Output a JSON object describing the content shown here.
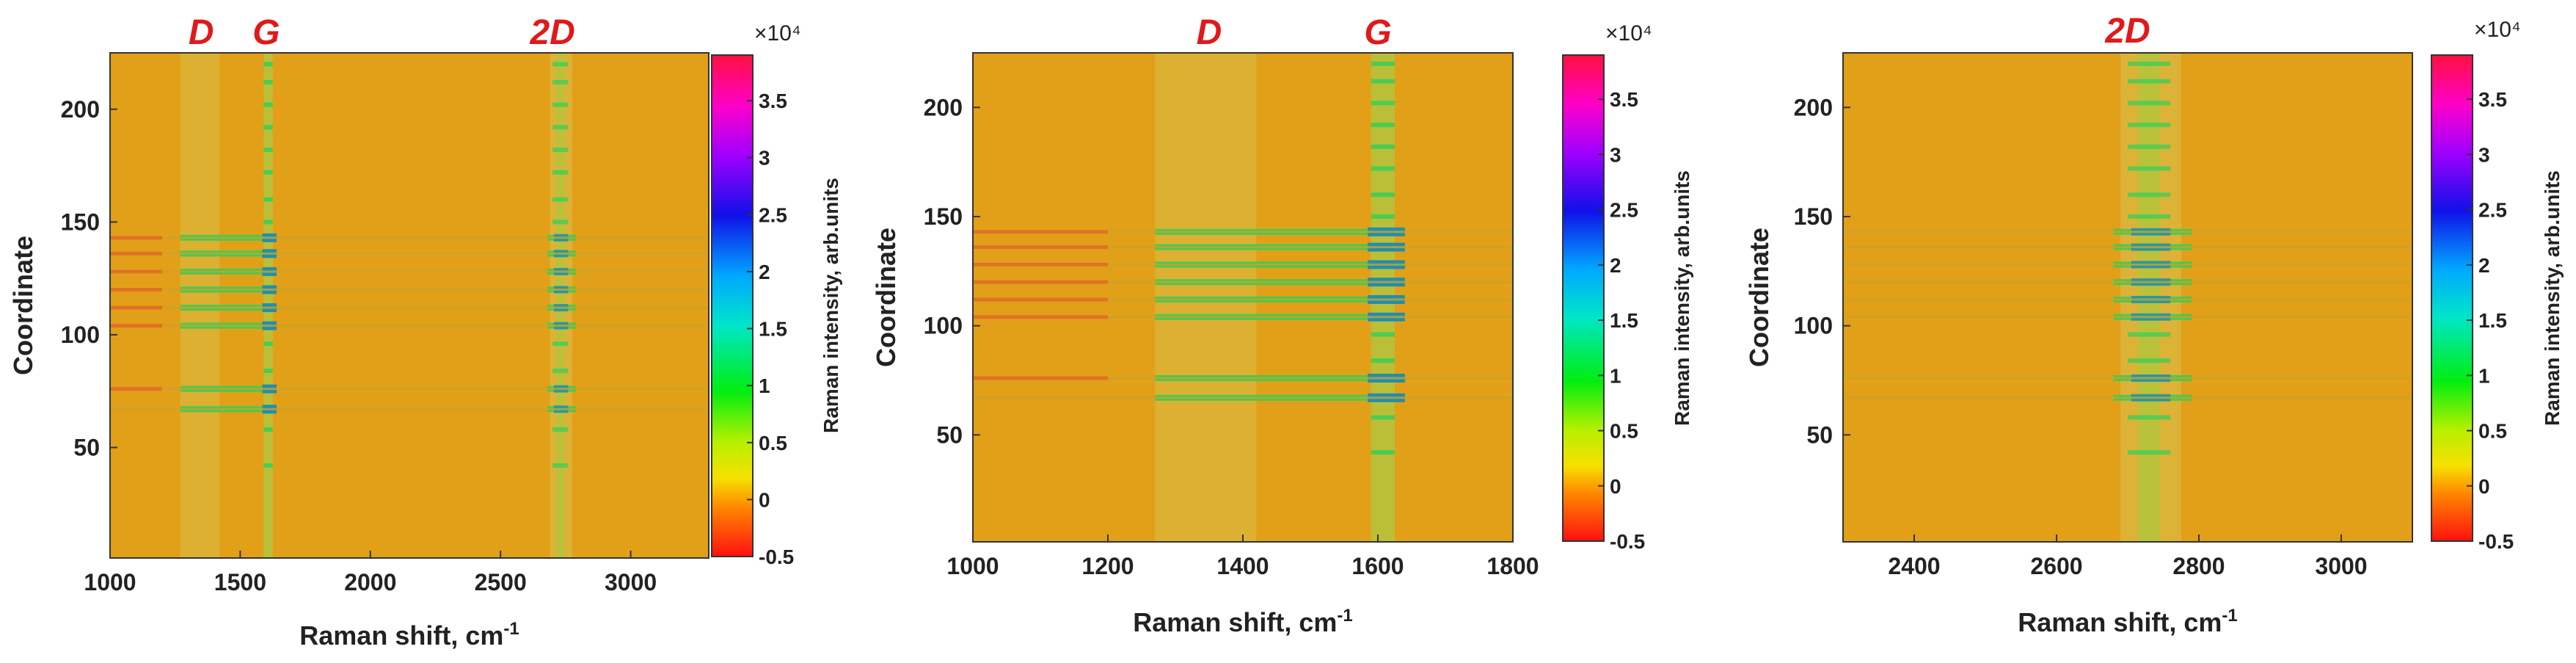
{
  "chart_data": [
    {
      "type": "heatmap",
      "id": "full",
      "xlabel": "Raman shift, cm",
      "xlabel_sup": "-1",
      "ylabel": "Coordinate",
      "xlim": [
        1000,
        3300
      ],
      "ylim": [
        1,
        225
      ],
      "xticks": [
        1000,
        1500,
        2000,
        2500,
        3000
      ],
      "yticks": [
        50,
        100,
        150,
        200
      ],
      "peak_labels": [
        {
          "text": "D",
          "x": 1350
        },
        {
          "text": "G",
          "x": 1600
        },
        {
          "text": "2D",
          "x": 2700
        }
      ],
      "colorbar": {
        "label": "Raman intensity, arb.units",
        "exponent": "×10⁴",
        "ticks": [
          "-0.5",
          "0",
          "0.5",
          "1",
          "1.5",
          "2",
          "2.5",
          "3",
          "3.5"
        ],
        "tick_values": [
          -0.5,
          0,
          0.5,
          1,
          1.5,
          2,
          2.5,
          3,
          3.5
        ],
        "range": [
          -0.5,
          3.9
        ]
      }
    },
    {
      "type": "heatmap",
      "id": "zoom-d-g",
      "xlabel": "Raman shift, cm",
      "xlabel_sup": "-1",
      "ylabel": "Coordinate",
      "xlim": [
        1000,
        1800
      ],
      "ylim": [
        1,
        225
      ],
      "xticks": [
        1000,
        1200,
        1400,
        1600,
        1800
      ],
      "yticks": [
        50,
        100,
        150,
        200
      ],
      "peak_labels": [
        {
          "text": "D",
          "x": 1350
        },
        {
          "text": "G",
          "x": 1600
        }
      ],
      "colorbar": {
        "label": "Raman intensity, arb.units",
        "exponent": "×10⁴",
        "ticks": [
          "-0.5",
          "0",
          "0.5",
          "1",
          "1.5",
          "2",
          "2.5",
          "3",
          "3.5"
        ],
        "tick_values": [
          -0.5,
          0,
          0.5,
          1,
          1.5,
          2,
          2.5,
          3,
          3.5
        ],
        "range": [
          -0.5,
          3.9
        ]
      }
    },
    {
      "type": "heatmap",
      "id": "zoom-2d",
      "xlabel": "Raman shift, cm",
      "xlabel_sup": "-1",
      "ylabel": "Coordinate",
      "xlim": [
        2300,
        3100
      ],
      "ylim": [
        1,
        225
      ],
      "xticks": [
        2400,
        2600,
        2800,
        3000
      ],
      "yticks": [
        50,
        100,
        150,
        200
      ],
      "peak_labels": [
        {
          "text": "2D",
          "x": 2700
        }
      ],
      "colorbar": {
        "label": "Raman intensity, arb.units",
        "exponent": "×10⁴",
        "ticks": [
          "-0.5",
          "0",
          "0.5",
          "1",
          "1.5",
          "2",
          "2.5",
          "3",
          "3.5"
        ],
        "tick_values": [
          -0.5,
          0,
          0.5,
          1,
          1.5,
          2,
          2.5,
          3,
          3.5
        ],
        "range": [
          -0.5,
          3.9
        ]
      }
    }
  ],
  "colors": {
    "background": "#e2a018",
    "band": "#dbb53a",
    "peak_line": "#b7c23c",
    "stripe_strong": "#2fd05a",
    "stripe_peak": "#1f8fb0",
    "stripe_red": "#e8542a",
    "peak_label": "#e0191b"
  }
}
